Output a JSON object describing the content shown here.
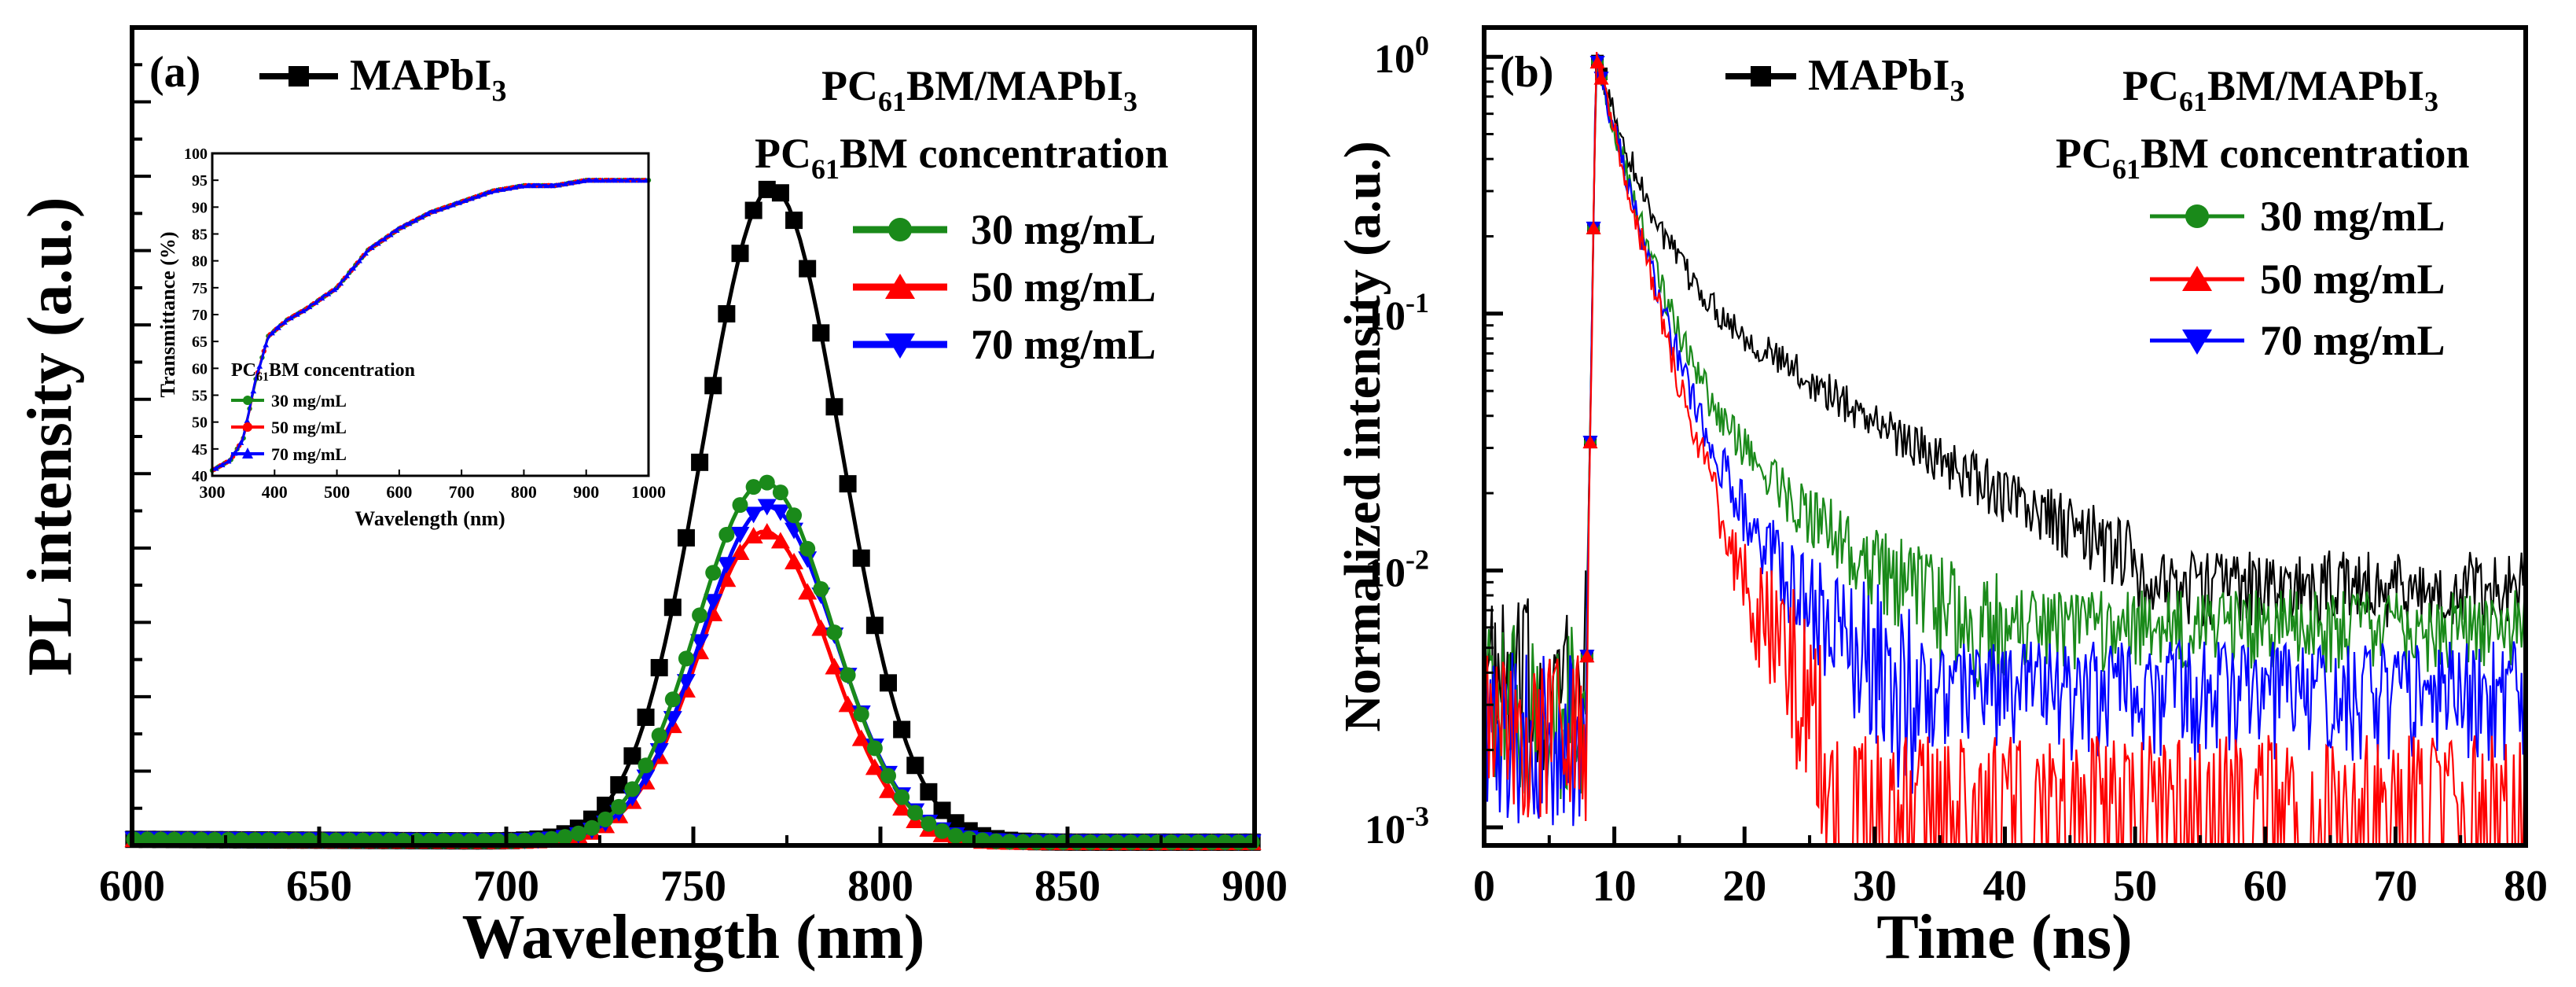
{
  "colors": {
    "black": "#000000",
    "green": "#1a8a1a",
    "red": "#ff0000",
    "blue": "#0000ff"
  },
  "chart_data": [
    {
      "type": "line",
      "panel_label": "(a)",
      "xlabel": "Wavelength (nm)",
      "ylabel": "PL intensity (a.u.)",
      "xlim": [
        600,
        900
      ],
      "ylim": [
        0,
        100
      ],
      "xticks": [
        "600",
        "650",
        "700",
        "750",
        "800",
        "850",
        "900"
      ],
      "legend_left": {
        "label_main": "MAPbI",
        "label_sub": "3"
      },
      "legend_title_line1": {
        "p1": "PC",
        "s1": "61",
        "p2": "BM/MAPbI",
        "s2": "3"
      },
      "legend_title_line2": {
        "p1": "PC",
        "s1": "61",
        "p2": "BM concentration"
      },
      "series": [
        {
          "name": "MAPbI3",
          "color": "#000000",
          "marker": "square",
          "peak": 80,
          "center": 771,
          "sigma": 18.5
        },
        {
          "name": "30 mg/mL",
          "color": "#1a8a1a",
          "marker": "circle",
          "peak": 44,
          "center": 769,
          "sigma": 18
        },
        {
          "name": "50 mg/mL",
          "color": "#ff0000",
          "marker": "triangle-up",
          "peak": 38,
          "center": 769,
          "sigma": 17.5
        },
        {
          "name": "70 mg/mL",
          "color": "#0000ff",
          "marker": "triangle-down",
          "peak": 41,
          "center": 770,
          "sigma": 18
        }
      ],
      "legend_entries": [
        "30 mg/mL",
        "50 mg/mL",
        "70 mg/mL"
      ]
    },
    {
      "type": "line",
      "inset_of": "(a)",
      "xlabel": "Wavelength (nm)",
      "ylabel": "Transmittance (%)",
      "xlim": [
        300,
        1000
      ],
      "ylim": [
        40,
        100
      ],
      "xticks": [
        "300",
        "400",
        "500",
        "600",
        "700",
        "800",
        "900",
        "1000"
      ],
      "yticks": [
        "40",
        "45",
        "50",
        "55",
        "60",
        "65",
        "70",
        "75",
        "80",
        "85",
        "90",
        "95",
        "100"
      ],
      "legend_title": {
        "p1": "PC",
        "s1": "61",
        "p2": "BM concentration"
      },
      "x": [
        300,
        330,
        350,
        370,
        390,
        420,
        450,
        500,
        550,
        600,
        650,
        700,
        750,
        800,
        850,
        900,
        950,
        1000
      ],
      "series": [
        {
          "name": "30 mg/mL",
          "color": "#1a8a1a",
          "values": [
            41,
            43,
            47,
            58,
            66,
            69,
            71,
            75,
            82,
            86,
            89,
            91,
            93,
            94,
            94,
            95,
            95,
            95
          ]
        },
        {
          "name": "50 mg/mL",
          "color": "#ff0000",
          "values": [
            41,
            43,
            47,
            58,
            66,
            69,
            71,
            75,
            82,
            86,
            89,
            91,
            93,
            94,
            94,
            95,
            95,
            95
          ]
        },
        {
          "name": "70 mg/mL",
          "color": "#0000ff",
          "values": [
            41,
            43,
            47,
            58,
            66,
            69,
            71,
            75,
            82,
            86,
            89,
            91,
            93,
            94,
            94,
            95,
            95,
            95
          ]
        }
      ],
      "legend_entries": [
        "30 mg/mL",
        "50 mg/mL",
        "70 mg/mL"
      ]
    },
    {
      "type": "line",
      "panel_label": "(b)",
      "xlabel": "Time (ns)",
      "ylabel": "Normalized intensity (a.u.)",
      "yscale": "log",
      "xlim": [
        0,
        80
      ],
      "ylim": [
        0.00085,
        1.3
      ],
      "xticks": [
        "0",
        "10",
        "20",
        "30",
        "40",
        "50",
        "60",
        "70",
        "80"
      ],
      "ytick_labels": [
        {
          "base": "10",
          "exp": "0"
        },
        {
          "base": "10",
          "exp": "-1"
        },
        {
          "base": "10",
          "exp": "-2"
        },
        {
          "base": "10",
          "exp": "-3"
        }
      ],
      "legend_left": {
        "label_main": "MAPbI",
        "label_sub": "3"
      },
      "legend_title_line1": {
        "p1": "PC",
        "s1": "61",
        "p2": "BM/MAPbI",
        "s2": "3"
      },
      "legend_title_line2": {
        "p1": "PC",
        "s1": "61",
        "p2": "BM concentration"
      },
      "series": [
        {
          "name": "MAPbI3",
          "color": "#000000",
          "peak_time": 8.6,
          "tau_fast": 2.2,
          "amp_slow": 0.18,
          "tau_slow": 13,
          "floor": 0.007
        },
        {
          "name": "30 mg/mL",
          "color": "#1a8a1a",
          "peak_time": 8.6,
          "tau_fast": 2.0,
          "amp_slow": 0.09,
          "tau_slow": 8.5,
          "floor": 0.006
        },
        {
          "name": "50 mg/mL",
          "color": "#ff0000",
          "peak_time": 8.6,
          "tau_fast": 2.0,
          "amp_slow": 0.05,
          "tau_slow": 5.2,
          "floor": 0.001
        },
        {
          "name": "70 mg/mL",
          "color": "#0000ff",
          "peak_time": 8.6,
          "tau_fast": 2.0,
          "amp_slow": 0.07,
          "tau_slow": 6.5,
          "floor": 0.003
        }
      ],
      "legend_entries": [
        "30 mg/mL",
        "50 mg/mL",
        "70 mg/mL"
      ]
    }
  ]
}
